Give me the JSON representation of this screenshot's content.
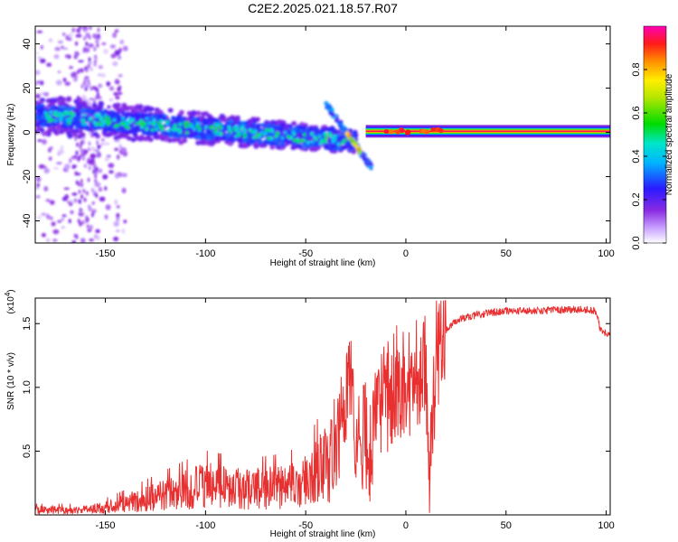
{
  "title": "C2E2.2025.021.18.57.R07",
  "colors": {
    "snr_line": "#e83030",
    "frame": "#000000",
    "waterfall_background": "#ffffff"
  },
  "chart_data": [
    {
      "type": "heatmap",
      "xlabel": "Height of straight line (km)",
      "ylabel": "Frequency (Hz)",
      "xlim": [
        -185,
        102
      ],
      "ylim": [
        -50,
        48
      ],
      "x_ticks": [
        -150,
        -100,
        -50,
        0,
        50,
        100
      ],
      "x_tick_labels": [
        "-150",
        "-100",
        "-50",
        "0",
        "50",
        "100"
      ],
      "y_ticks": [
        -40,
        -20,
        0,
        20,
        40
      ],
      "y_tick_labels": [
        "-40",
        "-20",
        "0",
        "20",
        "40"
      ],
      "colorbar": {
        "label": "Normalized spectral amplitude",
        "range": [
          0.0,
          1.0
        ],
        "ticks": [
          0.0,
          0.2,
          0.4,
          0.6,
          0.8
        ],
        "tick_labels": [
          "0.0",
          "0.2",
          "0.4",
          "0.6",
          "0.8"
        ],
        "colormap": "rainbow (white → purple → blue → cyan → green → yellow → orange → red → magenta)"
      },
      "features": {
        "steady_line": {
          "x_range": [
            -20,
            102
          ],
          "frequency_hz": 0.5,
          "amplitude": 0.95
        },
        "wandering_band": {
          "x_range": [
            -185,
            -25
          ],
          "frequency_start_hz": 8,
          "frequency_end_hz": -4,
          "amplitude": 0.35
        },
        "transition_streak": {
          "x_range": [
            -40,
            -17
          ],
          "frequency_start_hz": 13,
          "frequency_end_hz": -16
        },
        "scattered_low_energy": {
          "x_range": [
            -185,
            -140
          ],
          "frequency_range_hz": [
            -50,
            48
          ],
          "amplitude": 0.08
        }
      }
    },
    {
      "type": "line",
      "xlabel": "Height of straight line (km)",
      "ylabel": "SNR (10 * v/v)",
      "y_multiplier_label": "(x10",
      "y_multiplier_exponent": "4",
      "y_multiplier_close": ")",
      "xlim": [
        -185,
        102
      ],
      "ylim": [
        0,
        1.7
      ],
      "x_ticks": [
        -150,
        -100,
        -50,
        0,
        50,
        100
      ],
      "x_tick_labels": [
        "-150",
        "-100",
        "-50",
        "0",
        "50",
        "100"
      ],
      "y_ticks": [
        0.5,
        1.0,
        1.5
      ],
      "y_tick_labels": [
        "0.5",
        "1.0",
        "1.5"
      ],
      "series": [
        {
          "x": [
            -185,
            -160,
            -150,
            -140,
            -120,
            -100,
            -80,
            -60,
            -50,
            -40,
            -30,
            -27,
            -25,
            -22,
            -20,
            -18,
            -15,
            -10,
            -5,
            0,
            5,
            10,
            12,
            15,
            20,
            25,
            30,
            40,
            50,
            60,
            70,
            80,
            90,
            95,
            97,
            100,
            102
          ],
          "y": [
            0.04,
            0.04,
            0.06,
            0.09,
            0.16,
            0.23,
            0.2,
            0.22,
            0.26,
            0.4,
            0.75,
            1.25,
            0.5,
            0.55,
            0.65,
            0.45,
            0.75,
            0.9,
            1.05,
            1.0,
            1.1,
            1.2,
            0.35,
            1.25,
            1.45,
            1.52,
            1.55,
            1.58,
            1.6,
            1.6,
            1.6,
            1.61,
            1.61,
            1.6,
            1.45,
            1.42,
            1.42
          ]
        }
      ]
    }
  ]
}
